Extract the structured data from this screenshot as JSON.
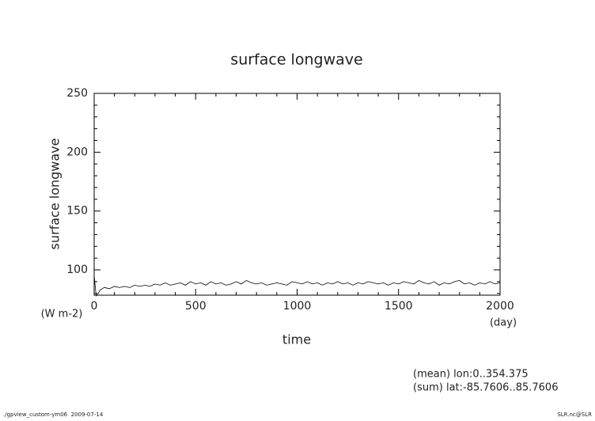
{
  "chart_data": {
    "type": "line",
    "title": "surface longwave",
    "y_label": "surface longwave",
    "y_unit": "(W m-2)",
    "x_label": "time",
    "x_unit": "(day)",
    "annotations": [
      "(mean) lon:0..354.375",
      "(sum) lat:-85.7606..85.7606"
    ],
    "footer_left": "./gpview_custom-ym06  2009-07-14",
    "footer_right": "SLR.nc@SLR",
    "xlim": [
      0,
      2000
    ],
    "xticks": [
      0,
      500,
      1000,
      1500,
      2000
    ],
    "xminorticks": [
      100,
      200,
      300,
      400,
      600,
      700,
      800,
      900,
      1100,
      1200,
      1300,
      1400,
      1600,
      1700,
      1800,
      1900
    ],
    "ylim": [
      78.5,
      250
    ],
    "yticks": [
      100,
      150,
      200,
      250
    ],
    "yminorticks": [
      80,
      90,
      110,
      120,
      130,
      140,
      160,
      170,
      180,
      190,
      210,
      220,
      230,
      240
    ],
    "x": [
      0,
      10,
      20,
      30,
      40,
      50,
      75,
      100,
      125,
      150,
      175,
      200,
      225,
      250,
      275,
      300,
      325,
      350,
      375,
      400,
      425,
      450,
      475,
      500,
      525,
      550,
      575,
      600,
      625,
      650,
      675,
      700,
      725,
      750,
      775,
      800,
      825,
      850,
      875,
      900,
      925,
      950,
      975,
      1000,
      1025,
      1050,
      1075,
      1100,
      1125,
      1150,
      1175,
      1200,
      1225,
      1250,
      1275,
      1300,
      1325,
      1350,
      1375,
      1400,
      1425,
      1450,
      1475,
      1500,
      1525,
      1550,
      1575,
      1600,
      1625,
      1650,
      1675,
      1700,
      1725,
      1750,
      1775,
      1800,
      1825,
      1850,
      1875,
      1900,
      1925,
      1950,
      1975,
      2000
    ],
    "series": [
      {
        "color": "#000000",
        "values": [
          95,
          78,
          80,
          83,
          84,
          85,
          84,
          86,
          85,
          86,
          85,
          87,
          86,
          87,
          86,
          88,
          87,
          89,
          87,
          88,
          89,
          87,
          90,
          88,
          89,
          87,
          90,
          88,
          89,
          87,
          88,
          90,
          88,
          91,
          89,
          88,
          89,
          87,
          88,
          89,
          88,
          87,
          90,
          89,
          88,
          90,
          88,
          89,
          87,
          89,
          88,
          90,
          88,
          89,
          87,
          89,
          88,
          90,
          89,
          88,
          89,
          87,
          89,
          88,
          90,
          89,
          88,
          91,
          89,
          88,
          90,
          87,
          89,
          88,
          90,
          91,
          88,
          89,
          87,
          89,
          88,
          90,
          88,
          89
        ]
      }
    ]
  }
}
